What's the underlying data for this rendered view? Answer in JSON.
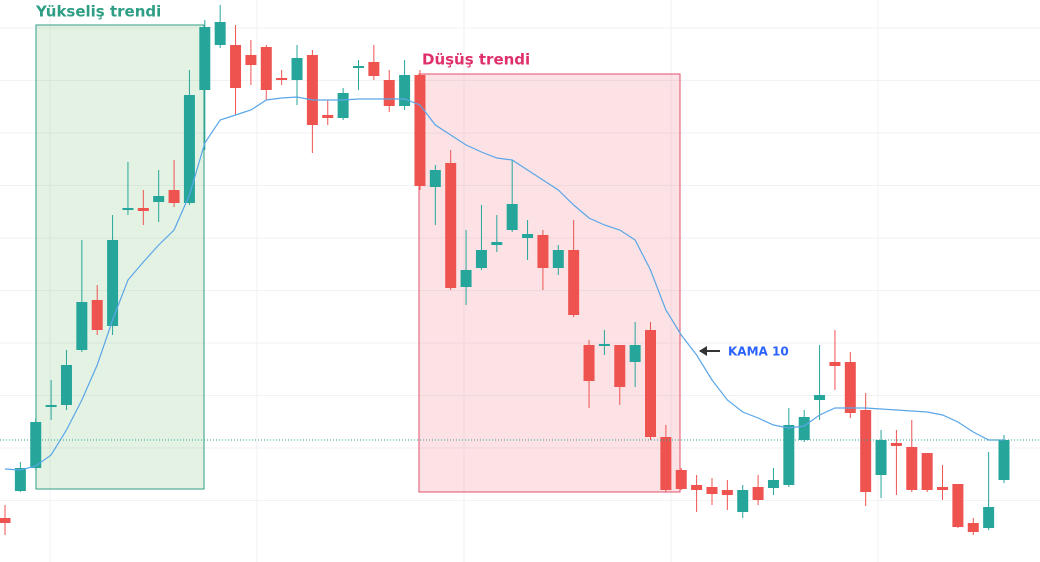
{
  "chart_data": {
    "type": "candlestick",
    "annotations": [
      "Yükseliş trendi",
      "Düşüş trendi"
    ],
    "ylim": [
      0,
      562
    ],
    "grid": true,
    "up_color": "#26a69a",
    "down_color": "#ef5350",
    "open": [
      44,
      71,
      94,
      155,
      157,
      212,
      262,
      236,
      352,
      354,
      360,
      372,
      359,
      472,
      517,
      517,
      507,
      515,
      484,
      482,
      507,
      447,
      444,
      494,
      500,
      482,
      456,
      487,
      375,
      399,
      275,
      294,
      317,
      332,
      324,
      327,
      294,
      312,
      217,
      216,
      217,
      200,
      232,
      125,
      92,
      77,
      75,
      72,
      50,
      75,
      74,
      77,
      122,
      162,
      200,
      200,
      152,
      87,
      119,
      115,
      109,
      75,
      78,
      39,
      34,
      82
    ],
    "high": [
      57,
      100,
      144,
      182,
      212,
      322,
      277,
      347,
      400,
      372,
      392,
      402,
      492,
      542,
      557,
      537,
      522,
      517,
      492,
      517,
      512,
      462,
      474,
      502,
      517,
      492,
      502,
      492,
      397,
      412,
      332,
      357,
      347,
      402,
      342,
      332,
      317,
      342,
      222,
      232,
      217,
      240,
      240,
      137,
      94,
      87,
      84,
      82,
      77,
      87,
      94,
      154,
      152,
      217,
      232,
      210,
      169,
      132,
      132,
      142,
      109,
      97,
      78,
      44,
      110,
      127
    ],
    "low": [
      27,
      70,
      92,
      142,
      152,
      210,
      227,
      227,
      347,
      337,
      340,
      355,
      357,
      412,
      514,
      447,
      477,
      462,
      477,
      457,
      409,
      437,
      442,
      472,
      482,
      450,
      452,
      372,
      337,
      272,
      257,
      292,
      310,
      330,
      302,
      272,
      287,
      245,
      154,
      207,
      157,
      175,
      122,
      70,
      72,
      50,
      57,
      52,
      44,
      57,
      67,
      75,
      120,
      142,
      172,
      144,
      56,
      64,
      67,
      70,
      70,
      62,
      34,
      27,
      32,
      79
    ],
    "close": [
      39,
      94,
      140,
      157,
      197,
      260,
      232,
      322,
      354,
      351,
      366,
      359,
      467,
      535,
      540,
      474,
      497,
      472,
      482,
      504,
      437,
      444,
      469,
      496,
      486,
      456,
      487,
      376,
      392,
      274,
      292,
      312,
      320,
      358,
      328,
      294,
      312,
      247,
      181,
      218,
      175,
      217,
      125,
      72,
      73,
      72,
      68,
      67,
      72,
      62,
      82,
      137,
      145,
      167,
      196,
      149,
      70,
      122,
      116,
      72,
      72,
      72,
      35,
      30,
      55,
      122
    ],
    "series": [
      {
        "name": "KAMA 10",
        "color": "#5aa6e8",
        "values": [
          93,
          92,
          96,
          107,
          132,
          162,
          197,
          242,
          282,
          300,
          317,
          332,
          367,
          419,
          442,
          447,
          452,
          462,
          464,
          465,
          462,
          462,
          462,
          463,
          463,
          463,
          463,
          457,
          437,
          427,
          417,
          410,
          404,
          402,
          392,
          382,
          372,
          357,
          344,
          337,
          332,
          322,
          292,
          252,
          227,
          207,
          182,
          162,
          150,
          144,
          137,
          134,
          136,
          147,
          154,
          154,
          154,
          153,
          152,
          151,
          150,
          147,
          140,
          130,
          122,
          122
        ]
      }
    ]
  }
}
